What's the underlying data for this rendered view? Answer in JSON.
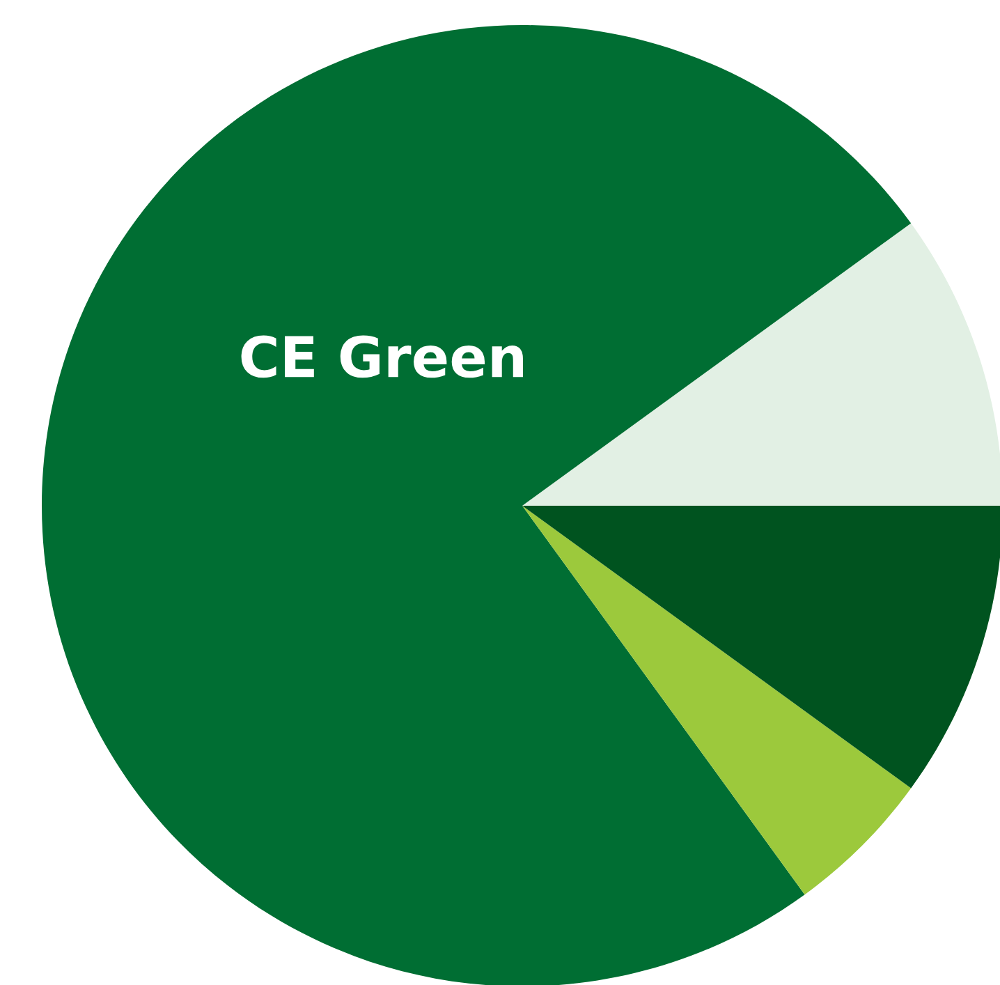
{
  "chart_data": {
    "type": "pie",
    "categories": [
      null,
      "CE Green",
      null,
      null
    ],
    "values": [
      10,
      75,
      5,
      10
    ],
    "colors": [
      "#e2f0e4",
      "#006e33",
      "#9cc93c",
      "#00531f"
    ]
  }
}
